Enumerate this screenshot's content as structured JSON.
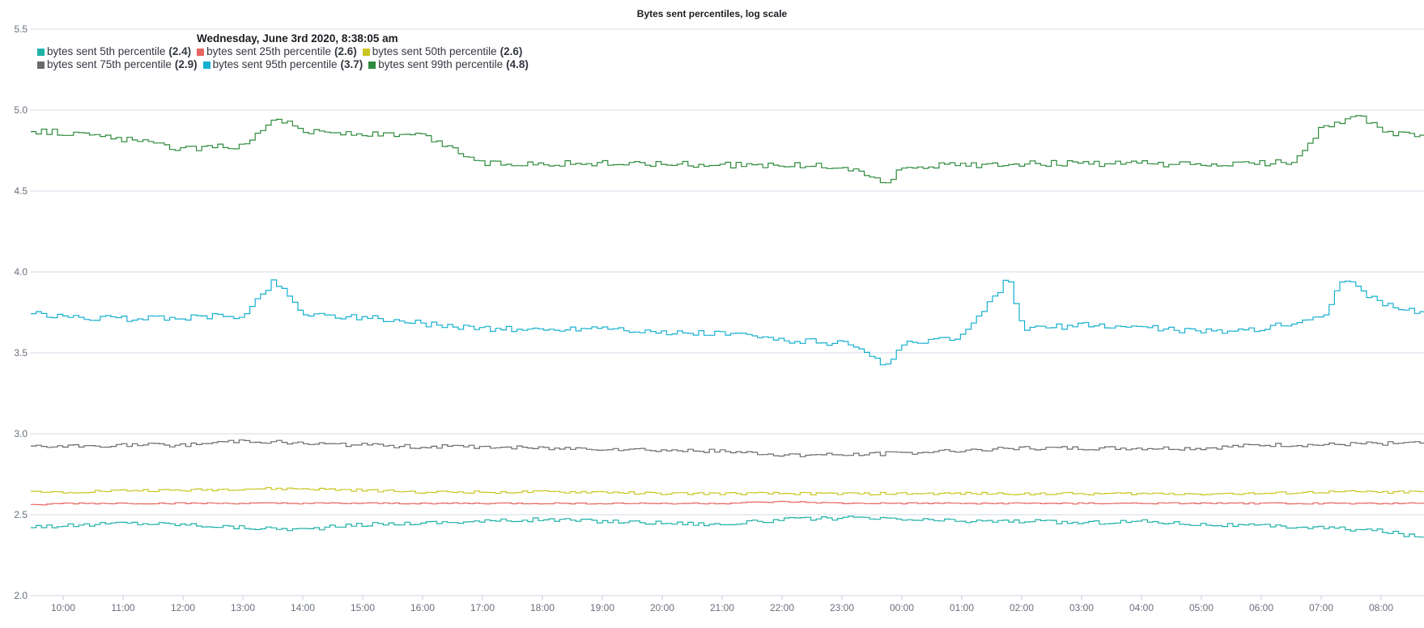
{
  "chart_data": {
    "type": "line",
    "title": "Bytes sent percentiles, log scale",
    "xlabel": "",
    "ylabel": "",
    "ylim": [
      2.0,
      5.5
    ],
    "y_ticks": [
      "2.0",
      "2.5",
      "3.0",
      "3.5",
      "4.0",
      "4.5",
      "5.0",
      "5.5"
    ],
    "x_ticks": [
      "10:00",
      "11:00",
      "12:00",
      "13:00",
      "14:00",
      "15:00",
      "16:00",
      "17:00",
      "18:00",
      "19:00",
      "20:00",
      "21:00",
      "22:00",
      "23:00",
      "00:00",
      "01:00",
      "02:00",
      "03:00",
      "04:00",
      "05:00",
      "06:00",
      "07:00",
      "08:00"
    ],
    "grid": true,
    "line_style": "step",
    "tooltip_header": "Wednesday, June 3rd 2020, 8:38:05 am",
    "legend_placement": "top-left",
    "series": [
      {
        "name": "bytes sent 5th percentile",
        "legend_value": "(2.4)",
        "color": "#1eb1a8",
        "x": [
          "09:30",
          "10:00",
          "11:00",
          "12:00",
          "13:00",
          "14:00",
          "15:00",
          "16:00",
          "17:00",
          "18:00",
          "19:00",
          "20:00",
          "21:00",
          "22:00",
          "23:00",
          "00:00",
          "01:00",
          "02:00",
          "03:00",
          "04:00",
          "05:00",
          "06:00",
          "07:00",
          "08:00",
          "08:38"
        ],
        "values": [
          2.43,
          2.43,
          2.45,
          2.44,
          2.42,
          2.41,
          2.44,
          2.45,
          2.46,
          2.47,
          2.46,
          2.45,
          2.44,
          2.47,
          2.48,
          2.47,
          2.46,
          2.46,
          2.45,
          2.46,
          2.44,
          2.43,
          2.42,
          2.4,
          2.36
        ]
      },
      {
        "name": "bytes sent 25th percentile",
        "legend_value": "(2.6)",
        "color": "#e7665f",
        "x": [
          "09:30",
          "10:00",
          "11:00",
          "12:00",
          "13:00",
          "14:00",
          "15:00",
          "16:00",
          "17:00",
          "18:00",
          "19:00",
          "20:00",
          "21:00",
          "22:00",
          "23:00",
          "00:00",
          "01:00",
          "02:00",
          "03:00",
          "04:00",
          "05:00",
          "06:00",
          "07:00",
          "08:00",
          "08:38"
        ],
        "values": [
          2.56,
          2.57,
          2.57,
          2.57,
          2.57,
          2.57,
          2.57,
          2.57,
          2.57,
          2.57,
          2.57,
          2.57,
          2.57,
          2.58,
          2.57,
          2.57,
          2.57,
          2.57,
          2.57,
          2.57,
          2.57,
          2.57,
          2.57,
          2.57,
          2.57
        ]
      },
      {
        "name": "bytes sent 50th percentile",
        "legend_value": "(2.6)",
        "color": "#cbc523",
        "x": [
          "09:30",
          "10:00",
          "11:00",
          "12:00",
          "13:00",
          "14:00",
          "15:00",
          "16:00",
          "17:00",
          "18:00",
          "19:00",
          "20:00",
          "21:00",
          "22:00",
          "23:00",
          "00:00",
          "01:00",
          "02:00",
          "03:00",
          "04:00",
          "05:00",
          "06:00",
          "07:00",
          "08:00",
          "08:38"
        ],
        "values": [
          2.64,
          2.64,
          2.65,
          2.65,
          2.66,
          2.66,
          2.65,
          2.64,
          2.64,
          2.64,
          2.64,
          2.63,
          2.63,
          2.63,
          2.63,
          2.63,
          2.63,
          2.63,
          2.63,
          2.63,
          2.63,
          2.63,
          2.64,
          2.64,
          2.64
        ]
      },
      {
        "name": "bytes sent 75th percentile",
        "legend_value": "(2.9)",
        "color": "#6a6a6a",
        "x": [
          "09:30",
          "10:00",
          "11:00",
          "12:00",
          "13:00",
          "14:00",
          "15:00",
          "16:00",
          "17:00",
          "18:00",
          "19:00",
          "20:00",
          "21:00",
          "22:00",
          "23:00",
          "00:00",
          "01:00",
          "02:00",
          "03:00",
          "04:00",
          "05:00",
          "06:00",
          "07:00",
          "08:00",
          "08:38"
        ],
        "values": [
          2.92,
          2.92,
          2.93,
          2.93,
          2.96,
          2.94,
          2.93,
          2.92,
          2.92,
          2.91,
          2.91,
          2.9,
          2.89,
          2.87,
          2.87,
          2.88,
          2.9,
          2.91,
          2.91,
          2.91,
          2.91,
          2.93,
          2.93,
          2.94,
          2.94
        ]
      },
      {
        "name": "bytes sent 95th percentile",
        "legend_value": "(3.7)",
        "color": "#17b0cf",
        "x": [
          "09:30",
          "10:00",
          "11:00",
          "12:00",
          "13:00",
          "13:30",
          "14:00",
          "15:00",
          "16:00",
          "17:00",
          "18:00",
          "19:00",
          "20:00",
          "21:00",
          "22:00",
          "23:00",
          "23:45",
          "00:00",
          "01:00",
          "01:45",
          "02:00",
          "03:00",
          "04:00",
          "05:00",
          "06:00",
          "07:00",
          "07:20",
          "08:00",
          "08:38"
        ],
        "values": [
          3.74,
          3.72,
          3.71,
          3.72,
          3.73,
          3.95,
          3.74,
          3.72,
          3.68,
          3.65,
          3.64,
          3.66,
          3.62,
          3.62,
          3.58,
          3.56,
          3.42,
          3.55,
          3.6,
          3.96,
          3.65,
          3.67,
          3.66,
          3.63,
          3.65,
          3.72,
          3.96,
          3.8,
          3.75
        ]
      },
      {
        "name": "bytes sent 99th percentile",
        "legend_value": "(4.8)",
        "color": "#2e8b3d",
        "x": [
          "09:30",
          "10:00",
          "11:00",
          "12:00",
          "13:00",
          "13:30",
          "14:00",
          "15:00",
          "16:00",
          "17:00",
          "18:00",
          "19:00",
          "20:00",
          "21:00",
          "22:00",
          "23:00",
          "23:45",
          "00:00",
          "01:00",
          "02:00",
          "03:00",
          "04:00",
          "05:00",
          "06:00",
          "06:30",
          "07:00",
          "07:40",
          "08:00",
          "08:38"
        ],
        "values": [
          4.87,
          4.86,
          4.82,
          4.76,
          4.78,
          4.96,
          4.87,
          4.85,
          4.84,
          4.67,
          4.67,
          4.67,
          4.67,
          4.66,
          4.66,
          4.65,
          4.55,
          4.65,
          4.66,
          4.67,
          4.67,
          4.67,
          4.66,
          4.67,
          4.68,
          4.9,
          4.96,
          4.86,
          4.84
        ]
      }
    ]
  }
}
